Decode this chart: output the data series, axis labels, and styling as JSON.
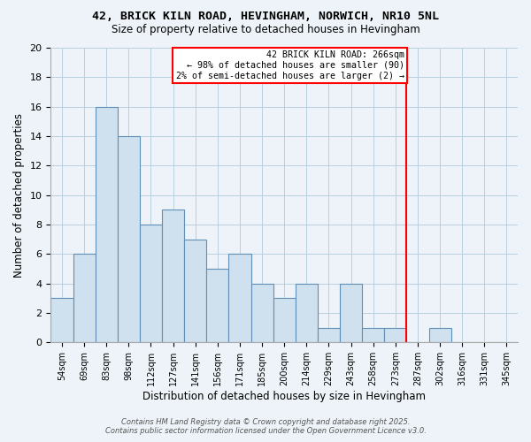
{
  "title": "42, BRICK KILN ROAD, HEVINGHAM, NORWICH, NR10 5NL",
  "subtitle": "Size of property relative to detached houses in Hevingham",
  "xlabel": "Distribution of detached houses by size in Hevingham",
  "ylabel": "Number of detached properties",
  "bar_color": "#cfe0ef",
  "bar_edgecolor": "#6090b8",
  "grid_color": "#b8cfe0",
  "background_color": "#edf3f8",
  "bin_labels": [
    "54sqm",
    "69sqm",
    "83sqm",
    "98sqm",
    "112sqm",
    "127sqm",
    "141sqm",
    "156sqm",
    "171sqm",
    "185sqm",
    "200sqm",
    "214sqm",
    "229sqm",
    "243sqm",
    "258sqm",
    "273sqm",
    "287sqm",
    "302sqm",
    "316sqm",
    "331sqm",
    "345sqm"
  ],
  "bar_heights": [
    3,
    6,
    16,
    14,
    8,
    9,
    7,
    5,
    6,
    4,
    3,
    4,
    1,
    4,
    1,
    1,
    0,
    1,
    0,
    0,
    0
  ],
  "n_bars": 21,
  "vline_pos": 15.5,
  "ylim": [
    0,
    20
  ],
  "yticks": [
    0,
    2,
    4,
    6,
    8,
    10,
    12,
    14,
    16,
    18,
    20
  ],
  "annotation_title": "42 BRICK KILN ROAD: 266sqm",
  "annotation_line1": "← 98% of detached houses are smaller (90)",
  "annotation_line2": "2% of semi-detached houses are larger (2) →",
  "footer1": "Contains HM Land Registry data © Crown copyright and database right 2025.",
  "footer2": "Contains public sector information licensed under the Open Government Licence v3.0."
}
